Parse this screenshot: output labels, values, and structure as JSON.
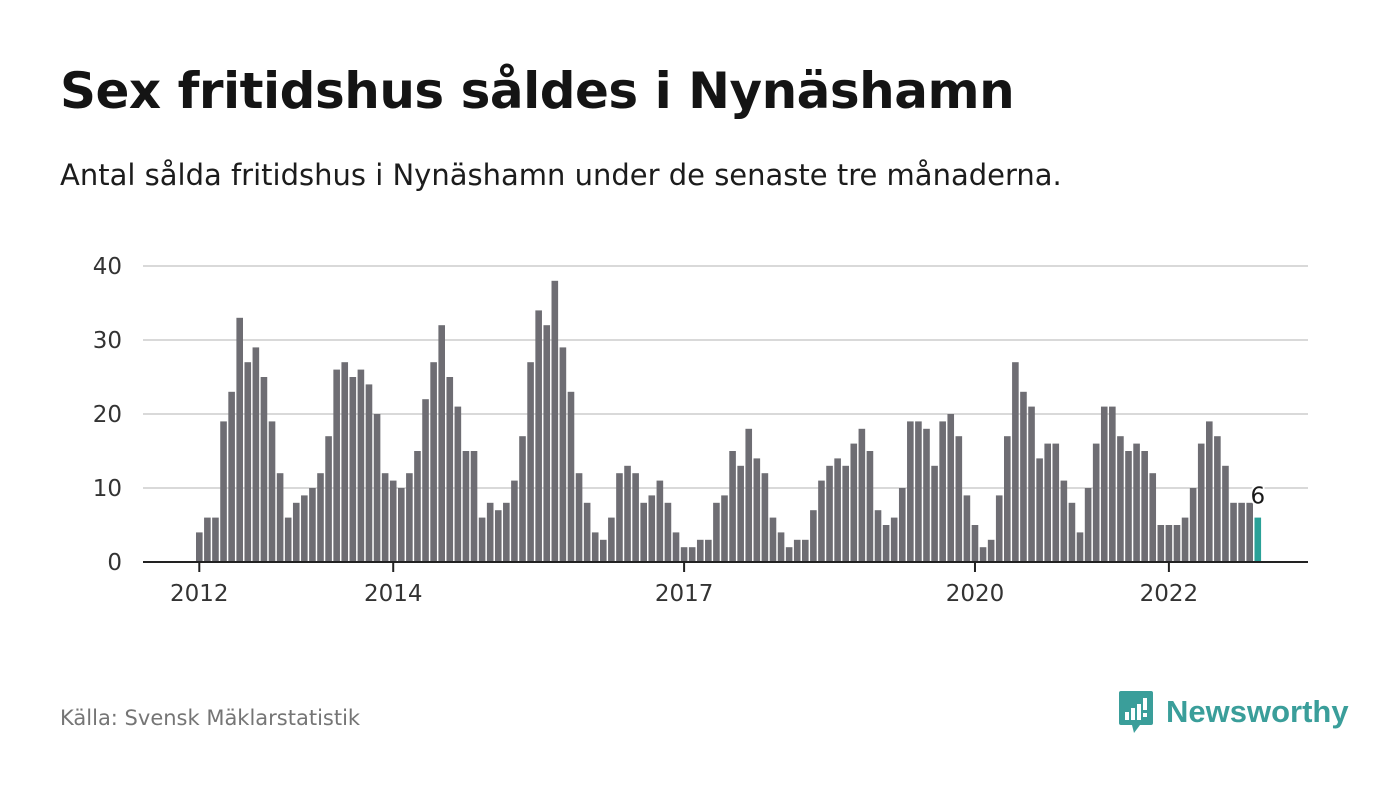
{
  "title": "Sex fritidshus såldes i Nynäshamn",
  "subtitle": "Antal sålda fritidshus i Nynäshamn under de senaste tre månaderna.",
  "source": "Källa: Svensk Mäklarstatistik",
  "brand": {
    "name": "Newsworthy",
    "icon": "newsworthy-logo-icon"
  },
  "colors": {
    "bar": "#6e6d73",
    "highlight": "#2aa198",
    "grid": "#d9d9d9",
    "axis": "#222222",
    "brand": "#3a9e9a"
  },
  "chart_data": {
    "type": "bar",
    "x_start": "2012-01",
    "x_end": "2022-10",
    "x_ticks": [
      {
        "label": "2012",
        "date": "2012-01"
      },
      {
        "label": "2014",
        "date": "2014-01"
      },
      {
        "label": "2017",
        "date": "2017-01"
      },
      {
        "label": "2020",
        "date": "2020-01"
      },
      {
        "label": "2022",
        "date": "2022-01"
      }
    ],
    "y_ticks": [
      0,
      10,
      20,
      30,
      40
    ],
    "ylim": [
      0,
      40
    ],
    "grid": true,
    "values": [
      4,
      6,
      6,
      19,
      23,
      33,
      27,
      29,
      25,
      19,
      12,
      6,
      8,
      9,
      10,
      12,
      17,
      26,
      27,
      25,
      26,
      24,
      20,
      12,
      11,
      10,
      12,
      15,
      22,
      27,
      32,
      25,
      21,
      15,
      15,
      6,
      8,
      7,
      8,
      11,
      17,
      27,
      34,
      32,
      38,
      29,
      23,
      12,
      8,
      4,
      3,
      6,
      12,
      13,
      12,
      8,
      9,
      11,
      8,
      4,
      2,
      2,
      3,
      3,
      8,
      9,
      15,
      13,
      18,
      14,
      12,
      6,
      4,
      2,
      3,
      3,
      7,
      11,
      13,
      14,
      13,
      16,
      18,
      15,
      7,
      5,
      6,
      10,
      19,
      19,
      18,
      13,
      19,
      20,
      17,
      9,
      5,
      2,
      3,
      9,
      17,
      27,
      23,
      21,
      14,
      16,
      16,
      11,
      8,
      4,
      10,
      16,
      21,
      21,
      17,
      15,
      16,
      15,
      12,
      5,
      5,
      5,
      6,
      10,
      16,
      19,
      17,
      13,
      8,
      8,
      8,
      6
    ],
    "highlight_last": true,
    "last_value_label": "6"
  }
}
